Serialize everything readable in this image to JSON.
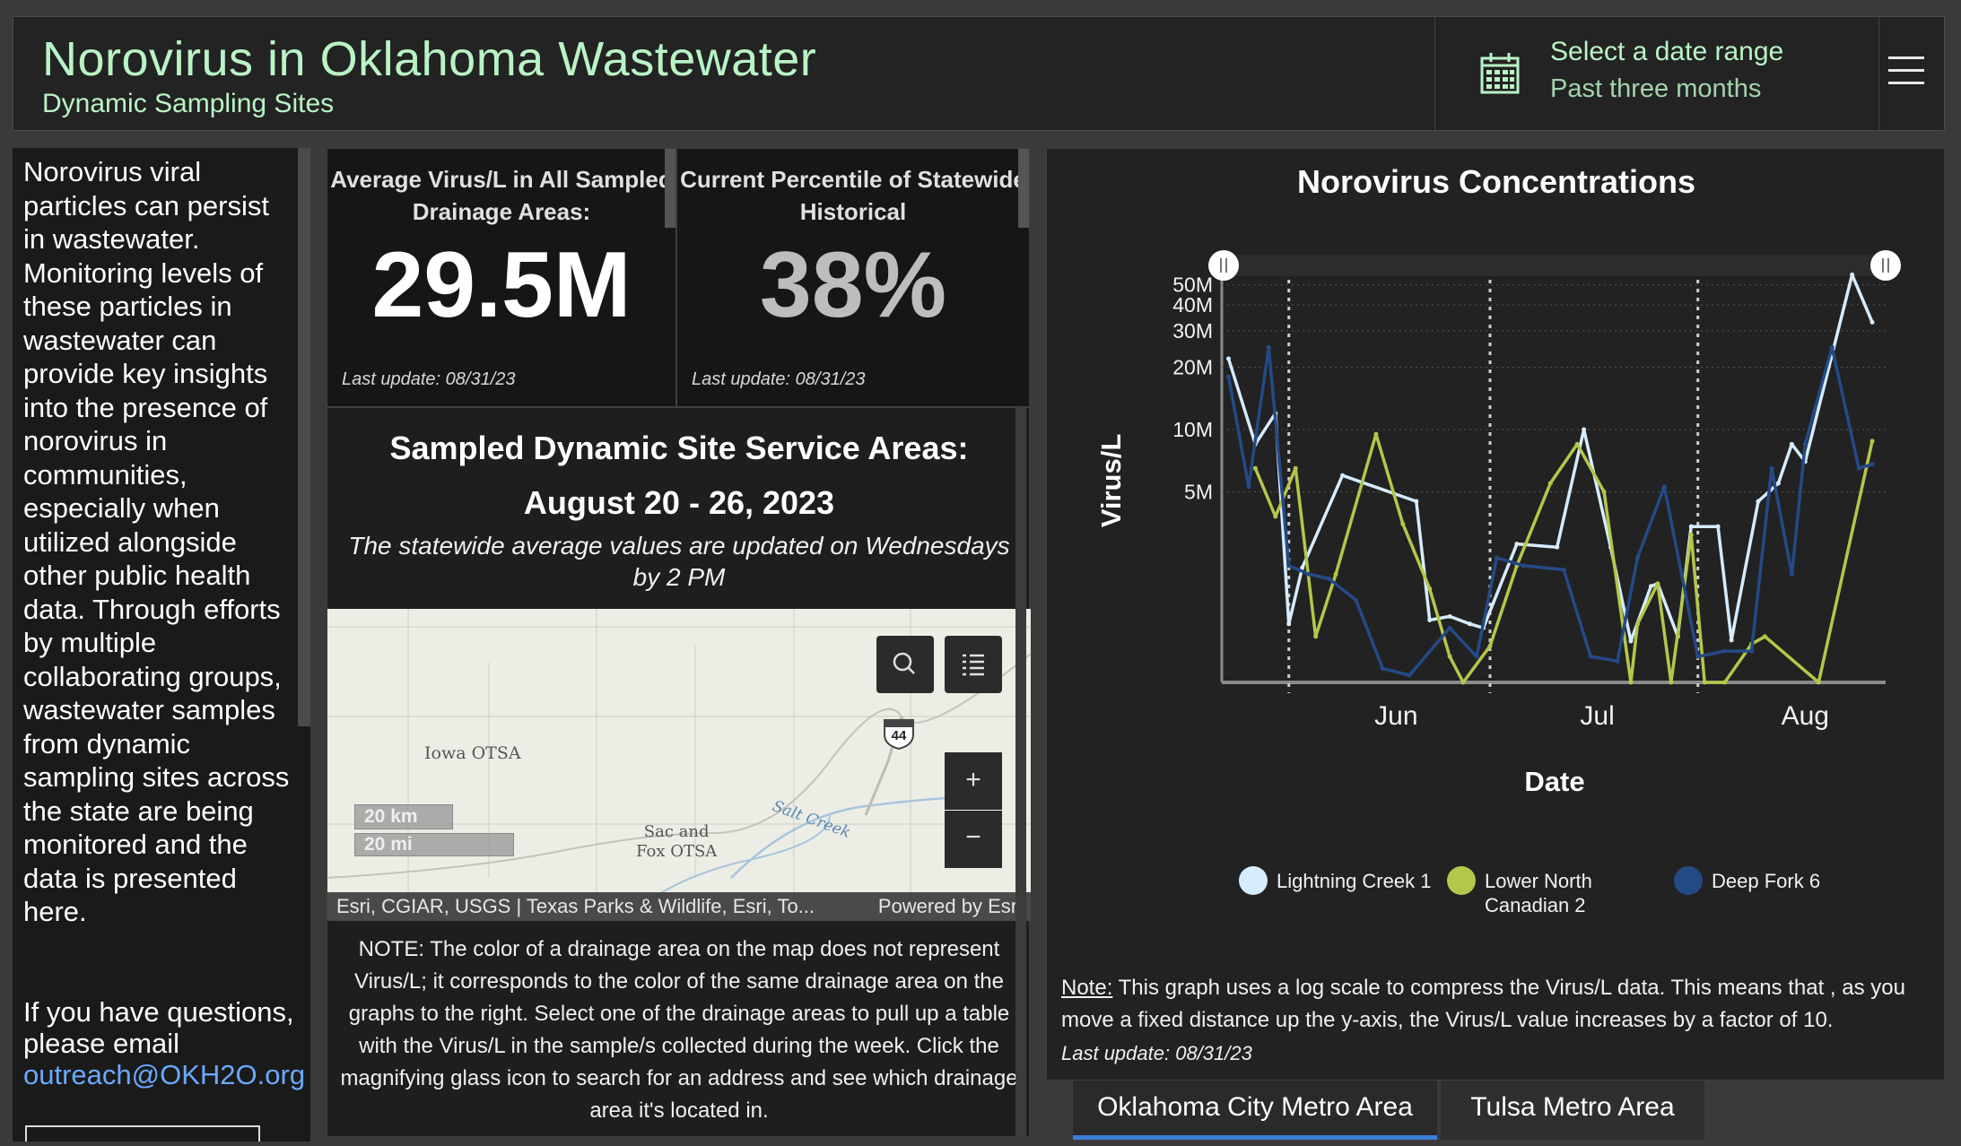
{
  "header": {
    "title": "Norovirus in Oklahoma Wastewater",
    "subtitle": "Dynamic Sampling Sites",
    "date_selector": {
      "label": "Select a date range",
      "value": "Past three months",
      "icon": "calendar-icon"
    },
    "menu_icon": "hamburger-menu-icon"
  },
  "intro": {
    "text": "Norovirus viral particles can persist in wastewater. Monitoring levels of these particles in wastewater can provide key insights into the presence of norovirus in communities, especially when utilized alongside other public health data. Through efforts by multiple collaborating groups, wastewater samples from dynamic sampling sites across the state are being monitored and the data is presented here.",
    "question": "If you have questions, please email",
    "email": "outreach@OKH2O.org"
  },
  "kpis": [
    {
      "label": "Average Virus/L in All Sampled Drainage Areas:",
      "value": "29.5M",
      "update": "Last update: 08/31/23",
      "color": "#ffffff"
    },
    {
      "label": "Current Percentile of Statewide Historical",
      "value": "38%",
      "update": "Last update: 08/31/23",
      "color": "#bdbdbd"
    }
  ],
  "areas": {
    "title_line1": "Sampled Dynamic Site Service Areas:",
    "title_line2": "August 20 - 26, 2023",
    "note": "The statewide average values are updated on Wednesdays by 2 PM"
  },
  "map": {
    "labels": {
      "iowa": "Iowa OTSA",
      "sac_fox_1": "Sac and",
      "sac_fox_2": "Fox OTSA",
      "salt_creek": "Salt Creek",
      "highway": "44"
    },
    "scale": {
      "km": "20 km",
      "mi": "20 mi"
    },
    "attribution": "Esri, CGIAR, USGS | Texas Parks & Wildlife, Esri, To...",
    "powered_by": "Powered by Esri",
    "controls": {
      "search_icon": "search-icon",
      "legend_icon": "list-icon",
      "zoom_in": "+",
      "zoom_out": "−"
    },
    "note": "NOTE: The color of a drainage area on the map does not represent Virus/L; it corresponds to the color of the same drainage area on the graphs to the right. Select one of the drainage areas to pull up a table with the Virus/L in the sample/s collected during the week. Click the magnifying glass icon to search for an address and see which drainage area it's located in."
  },
  "chart_data": {
    "type": "line",
    "title": "Norovirus Concentrations",
    "xlabel": "Date",
    "ylabel": "Virus/L",
    "y_scale": "log",
    "ylim": [
      600000,
      70000000
    ],
    "y_ticks": [
      {
        "value": 5000000,
        "label": "5M"
      },
      {
        "value": 10000000,
        "label": "10M"
      },
      {
        "value": 20000000,
        "label": "20M"
      },
      {
        "value": 30000000,
        "label": "30M"
      },
      {
        "value": 40000000,
        "label": "40M"
      },
      {
        "value": 50000000,
        "label": "50M"
      }
    ],
    "xlim": [
      1,
      100
    ],
    "x_ticks": [
      {
        "value": 27,
        "label": "Jun"
      },
      {
        "value": 57,
        "label": "Jul"
      },
      {
        "value": 88,
        "label": "Aug"
      }
    ],
    "x_markers": [
      11,
      41,
      72
    ],
    "legend_position": "bottom",
    "series": [
      {
        "name": "Lightning Creek 1",
        "color": "#d6ecff",
        "x": [
          2,
          6,
          9,
          11,
          13,
          19,
          30,
          32,
          35,
          38,
          40,
          45,
          51,
          55,
          59,
          62,
          65,
          66,
          69,
          71,
          75,
          77,
          81,
          84,
          86,
          88,
          95,
          98
        ],
        "y": [
          22000000,
          8500000,
          12000000,
          1150000,
          2150000,
          6000000,
          4500000,
          1200000,
          1250000,
          1150000,
          1100000,
          2800000,
          2700000,
          10000000,
          2700000,
          950000,
          1750000,
          1800000,
          1000000,
          3400000,
          3400000,
          960000,
          4500000,
          5500000,
          8500000,
          7000000,
          56000000,
          33000000
        ]
      },
      {
        "name": "Lower North Canadian 2",
        "color": "#b4c74a",
        "x": [
          6,
          9,
          12,
          15,
          18,
          24,
          28,
          32,
          35,
          37,
          41,
          45,
          50,
          54,
          58,
          62,
          63,
          66,
          68,
          71,
          73,
          76,
          80,
          82,
          90,
          98
        ],
        "y": [
          6500000,
          3800000,
          6500000,
          1000000,
          2000000,
          9500000,
          3500000,
          1700000,
          800000,
          580000,
          900000,
          2200000,
          5500000,
          8500000,
          5000000,
          580000,
          1150000,
          1800000,
          580000,
          3100000,
          550000,
          540000,
          920000,
          1000000,
          550000,
          8800000
        ]
      },
      {
        "name": "Deep Fork 6",
        "color": "#244a86",
        "x": [
          2,
          5,
          8,
          11,
          14,
          17,
          21,
          25,
          29,
          35,
          39,
          42,
          46,
          52,
          56,
          60,
          63,
          67,
          72,
          76,
          80,
          83,
          86,
          88,
          92,
          96,
          98
        ],
        "y": [
          18000000,
          5300000,
          25000000,
          2200000,
          2000000,
          1900000,
          1500000,
          700000,
          650000,
          1100000,
          800000,
          2400000,
          2200000,
          2100000,
          800000,
          760000,
          2400000,
          5300000,
          800000,
          850000,
          850000,
          6500000,
          2000000,
          8500000,
          25000000,
          6500000,
          6800000
        ]
      }
    ],
    "note_label": "Note:",
    "note": " This graph uses a log scale to compress the Virus/L data. This means that , as you move a fixed distance up the y-axis, the Virus/L value increases by a factor of 10.",
    "update": "Last update: 08/31/23"
  },
  "tabs": [
    {
      "label": "Oklahoma City Metro Area",
      "active": true
    },
    {
      "label": "Tulsa Metro Area",
      "active": false
    }
  ],
  "colors": {
    "accent_green": "#b9f3c6",
    "link_blue": "#6aa9ff",
    "tab_active": "#3a7fd6"
  }
}
